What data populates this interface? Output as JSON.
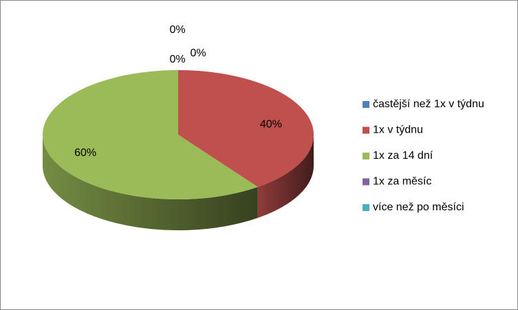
{
  "chart_data": {
    "type": "pie",
    "style": "3d",
    "categories": [
      "častější než 1x v týdnu",
      "1x v týdnu",
      "1x za 14 dní",
      "1x za měsíc",
      "více než po měsíci"
    ],
    "values": [
      0,
      40,
      60,
      0,
      0
    ],
    "value_labels": [
      "0%",
      "40%",
      "60%",
      "0%",
      "0%"
    ],
    "colors": [
      "#4f81bd",
      "#c0504d",
      "#9bbb59",
      "#8064a2",
      "#4bacc6"
    ],
    "legend": "right"
  }
}
